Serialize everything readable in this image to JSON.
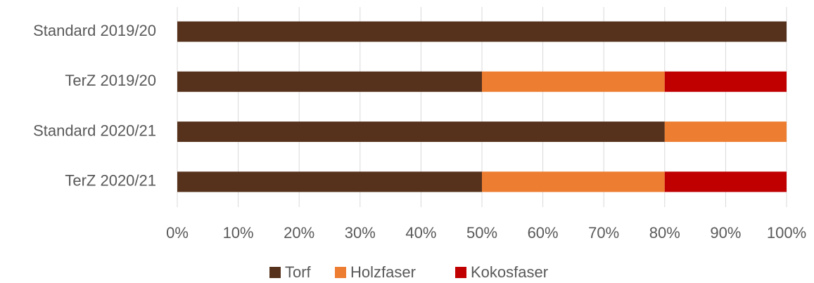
{
  "chart_data": {
    "type": "stacked_barh",
    "categories": [
      "Standard 2019/20",
      "TerZ 2019/20",
      "Standard 2020/21",
      "TerZ 2020/21"
    ],
    "series": [
      {
        "name": "Torf",
        "color": "#56321d",
        "values": [
          100,
          50,
          80,
          50
        ]
      },
      {
        "name": "Holzfaser",
        "color": "#ed7d31",
        "values": [
          0,
          30,
          20,
          30
        ]
      },
      {
        "name": "Kokosfaser",
        "color": "#c00000",
        "values": [
          0,
          20,
          0,
          20
        ]
      }
    ],
    "xlim": [
      0,
      100
    ],
    "xticks": [
      {
        "value": 0,
        "label": "0%"
      },
      {
        "value": 10,
        "label": "10%"
      },
      {
        "value": 20,
        "label": "20%"
      },
      {
        "value": 30,
        "label": "30%"
      },
      {
        "value": 40,
        "label": "40%"
      },
      {
        "value": 50,
        "label": "50%"
      },
      {
        "value": 60,
        "label": "60%"
      },
      {
        "value": 70,
        "label": "70%"
      },
      {
        "value": 80,
        "label": "80%"
      },
      {
        "value": 90,
        "label": "90%"
      },
      {
        "value": 100,
        "label": "100%"
      }
    ],
    "grid": true,
    "legend": "bottom"
  }
}
